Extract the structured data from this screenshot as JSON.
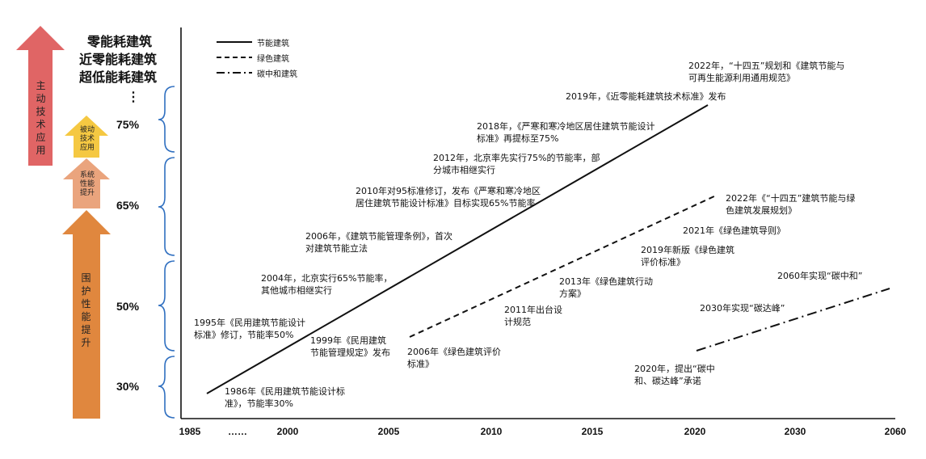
{
  "left_stack": {
    "arrow_red": {
      "label": "主动技术应用",
      "color": "#e06060"
    },
    "arrow_yellow": {
      "label": "被动技术应用",
      "color": "#f5c842"
    },
    "arrow_peach": {
      "label": "系统性能提升",
      "color": "#e9a27a"
    },
    "arrow_orange": {
      "label": "围护性能提升",
      "color": "#e0873e"
    }
  },
  "headings": [
    "零能耗建筑",
    "近零能耗建筑",
    "超低能耗建筑"
  ],
  "dots": "⋮",
  "levels": [
    "75%",
    "65%",
    "50%",
    "30%"
  ],
  "legend": {
    "solid": "节能建筑",
    "dashed": "绿色建筑",
    "dashdot": "碳中和建筑"
  },
  "x_ticks": [
    "1985",
    "……",
    "2000",
    "2005",
    "2010",
    "2015",
    "2020",
    "2030",
    "2060"
  ],
  "notes": {
    "n1986": "1986年《民用建筑节能设计标准》，节能率30%",
    "n1995": "1995年《民用建筑节能设计标准》修订，节能率50%",
    "n1999": "1999年《民用建筑节能管理规定》发布",
    "n2004": "2004年，北京实行65%节能率，其他城市相继实行",
    "n2006a": "2006年，《建筑节能管理条例》，首次对建筑节能立法",
    "n2010": "2010年对95标准修订，发布《严寒和寒冷地区居住建筑节能设计标准》目标实现65%节能率",
    "n2012": "2012年，北京率先实行75%的节能率，部分城市相继实行",
    "n2018": "2018年，《严寒和寒冷地区居住建筑节能设计标准》再提标至75%",
    "n2019": "2019年，《近零能耗建筑技术标准》发布",
    "n2022a": "2022年，“十四五”规划和《建筑节能与可再生能源利用通用规范》",
    "n2006b": "2006年《绿色建筑评价标准》",
    "n2011": "2011年出台设计规范",
    "n2013": "2013年《绿色建筑行动方案》",
    "n2019b": "2019年新版《绿色建筑评价标准》",
    "n2021": "2021年《绿色建筑导则》",
    "n2022b": "2022年《“十四五”建筑节能与绿色建筑发展规划》",
    "n2020": "2020年，提出“碳中和、碳达峰”承诺",
    "n2030": "2030年实现“碳达峰”",
    "n2060": "2060年实现“碳中和”"
  }
}
